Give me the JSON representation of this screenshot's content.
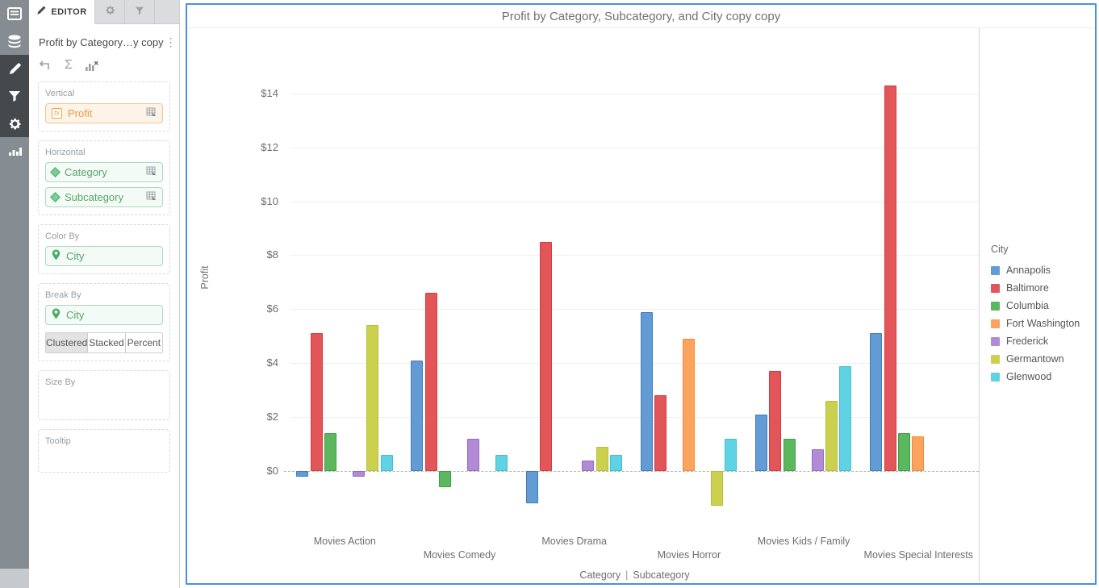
{
  "left_rail": {
    "items": [
      {
        "name": "contents",
        "active": false
      },
      {
        "name": "datasets",
        "active": false
      },
      {
        "name": "editor",
        "active": true
      },
      {
        "name": "filter",
        "active": true
      },
      {
        "name": "settings",
        "active": true
      },
      {
        "name": "visualization-gallery",
        "active": false
      }
    ]
  },
  "editor_panel": {
    "tabs": {
      "editor_label": "EDITOR"
    },
    "title": "Profit by Category…y copy",
    "sections": {
      "vertical": {
        "label": "Vertical",
        "pills": [
          {
            "text": "Profit"
          }
        ]
      },
      "horizontal": {
        "label": "Horizontal",
        "pills": [
          {
            "text": "Category"
          },
          {
            "text": "Subcategory"
          }
        ]
      },
      "color_by": {
        "label": "Color By",
        "pills": [
          {
            "text": "City"
          }
        ]
      },
      "break_by": {
        "label": "Break By",
        "pills": [
          {
            "text": "City"
          }
        ],
        "modes": [
          "Clustered",
          "Stacked",
          "Percent"
        ],
        "selected_mode": "Clustered"
      },
      "size_by": {
        "label": "Size By"
      },
      "tooltip": {
        "label": "Tooltip"
      }
    }
  },
  "chart_data": {
    "type": "bar",
    "title": "Profit by Category, Subcategory, and City copy copy",
    "ylabel": "Profit",
    "xlabel_parts": [
      "Category",
      "Subcategory"
    ],
    "xlabel_separator": "|",
    "legend_title": "City",
    "legend_position": "right",
    "grid": true,
    "zero_line": "dashed",
    "currency": "$",
    "y_ticks": [
      "$0",
      "$2",
      "$4",
      "$6",
      "$8",
      "$10",
      "$12",
      "$14"
    ],
    "ylim": [
      -2.2,
      16.4
    ],
    "categories": [
      "Movies Action",
      "Movies Comedy",
      "Movies Drama",
      "Movies Horror",
      "Movies Kids / Family",
      "Movies Special Interests"
    ],
    "series": [
      {
        "name": "Annapolis",
        "color": "#639cd4",
        "border": "#3f7cb8",
        "values": [
          -0.2,
          4.1,
          -1.2,
          5.9,
          2.1,
          5.1
        ]
      },
      {
        "name": "Baltimore",
        "color": "#e25558",
        "border": "#d63a3f",
        "values": [
          5.1,
          6.6,
          8.5,
          2.8,
          3.7,
          14.3
        ]
      },
      {
        "name": "Columbia",
        "color": "#5cb85f",
        "border": "#3e9e44",
        "values": [
          1.4,
          -0.6,
          null,
          null,
          1.2,
          1.4
        ]
      },
      {
        "name": "Fort Washington",
        "color": "#faa45e",
        "border": "#f5883b",
        "values": [
          null,
          null,
          null,
          4.9,
          null,
          1.3
        ]
      },
      {
        "name": "Frederick",
        "color": "#b18bd6",
        "border": "#9967c5",
        "values": [
          -0.2,
          1.2,
          0.4,
          null,
          0.8,
          null
        ]
      },
      {
        "name": "Germantown",
        "color": "#cbd14e",
        "border": "#b8be33",
        "values": [
          5.4,
          null,
          0.9,
          -1.3,
          2.6,
          null
        ]
      },
      {
        "name": "Glenwood",
        "color": "#5fd3e3",
        "border": "#3bc1d4",
        "values": [
          0.6,
          0.6,
          0.6,
          1.2,
          3.9,
          null
        ]
      }
    ]
  }
}
